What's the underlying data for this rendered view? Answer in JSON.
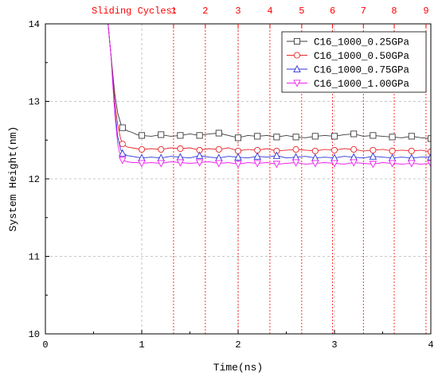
{
  "chart_data": {
    "type": "line",
    "xlabel": "Time(ns)",
    "ylabel": "System Height(nm)",
    "xlim": [
      0,
      4
    ],
    "ylim": [
      10,
      14
    ],
    "x_ticks": [
      "0",
      "1",
      "2",
      "3",
      "4"
    ],
    "y_ticks": [
      "10",
      "11",
      "12",
      "13",
      "14"
    ],
    "grid": true,
    "legend_position": "top-right",
    "top_axis": {
      "label": "Sliding Cycles:",
      "color": "#ff0000",
      "cycles": [
        {
          "label": "1",
          "time": 1.33
        },
        {
          "label": "2",
          "time": 1.66
        },
        {
          "label": "3",
          "time": 2.0
        },
        {
          "label": "4",
          "time": 2.33
        },
        {
          "label": "5",
          "time": 2.66
        },
        {
          "label": "6",
          "time": 2.98
        },
        {
          "label": "7",
          "time": 3.3
        },
        {
          "label": "8",
          "time": 3.62
        },
        {
          "label": "9",
          "time": 3.95
        }
      ]
    },
    "series": [
      {
        "name": "C16_1000_0.25GPa",
        "color": "#3a3a3a",
        "marker": "square",
        "x": [
          0.6,
          0.62,
          0.65,
          0.68,
          0.7,
          0.72,
          0.75,
          0.78,
          0.8,
          0.85,
          0.9,
          0.95,
          1.0,
          1.1,
          1.2,
          1.3,
          1.4,
          1.5,
          1.6,
          1.7,
          1.8,
          1.9,
          2.0,
          2.1,
          2.2,
          2.3,
          2.4,
          2.5,
          2.6,
          2.7,
          2.8,
          2.9,
          3.0,
          3.1,
          3.2,
          3.3,
          3.4,
          3.5,
          3.6,
          3.7,
          3.8,
          3.9,
          4.0
        ],
        "y": [
          14.6,
          14.3,
          14.0,
          13.6,
          13.35,
          13.1,
          12.85,
          12.72,
          12.66,
          12.62,
          12.6,
          12.57,
          12.56,
          12.55,
          12.57,
          12.55,
          12.56,
          12.58,
          12.56,
          12.58,
          12.59,
          12.56,
          12.53,
          12.56,
          12.55,
          12.56,
          12.54,
          12.56,
          12.54,
          12.53,
          12.55,
          12.56,
          12.55,
          12.57,
          12.58,
          12.55,
          12.56,
          12.55,
          12.54,
          12.53,
          12.55,
          12.53,
          12.52
        ],
        "marker_x": [
          0.8,
          1.0,
          1.2,
          1.4,
          1.6,
          1.8,
          2.0,
          2.2,
          2.4,
          2.6,
          2.8,
          3.0,
          3.2,
          3.4,
          3.6,
          3.8,
          4.0
        ]
      },
      {
        "name": "C16_1000_0.50GPa",
        "color": "#e8262a",
        "marker": "circle",
        "x": [
          0.6,
          0.62,
          0.65,
          0.68,
          0.7,
          0.72,
          0.75,
          0.78,
          0.8,
          0.85,
          0.9,
          0.95,
          1.0,
          1.1,
          1.2,
          1.3,
          1.4,
          1.5,
          1.6,
          1.7,
          1.8,
          1.9,
          2.0,
          2.1,
          2.2,
          2.3,
          2.4,
          2.5,
          2.6,
          2.7,
          2.8,
          2.9,
          3.0,
          3.1,
          3.2,
          3.3,
          3.4,
          3.5,
          3.6,
          3.7,
          3.8,
          3.9,
          4.0
        ],
        "y": [
          14.6,
          14.3,
          14.0,
          13.6,
          13.3,
          13.0,
          12.7,
          12.52,
          12.45,
          12.41,
          12.4,
          12.39,
          12.38,
          12.39,
          12.38,
          12.4,
          12.39,
          12.4,
          12.37,
          12.39,
          12.38,
          12.4,
          12.36,
          12.38,
          12.37,
          12.39,
          12.36,
          12.37,
          12.38,
          12.37,
          12.36,
          12.38,
          12.37,
          12.39,
          12.38,
          12.36,
          12.37,
          12.38,
          12.36,
          12.37,
          12.36,
          12.37,
          12.35
        ],
        "marker_x": [
          0.8,
          1.0,
          1.2,
          1.4,
          1.6,
          1.8,
          2.0,
          2.2,
          2.4,
          2.6,
          2.8,
          3.0,
          3.2,
          3.4,
          3.6,
          3.8,
          4.0
        ]
      },
      {
        "name": "C16_1000_0.75GPa",
        "color": "#2c33d6",
        "marker": "triangle",
        "x": [
          0.6,
          0.62,
          0.65,
          0.68,
          0.7,
          0.72,
          0.75,
          0.78,
          0.8,
          0.85,
          0.9,
          0.95,
          1.0,
          1.1,
          1.2,
          1.3,
          1.4,
          1.5,
          1.6,
          1.7,
          1.8,
          1.9,
          2.0,
          2.1,
          2.2,
          2.3,
          2.4,
          2.5,
          2.6,
          2.7,
          2.8,
          2.9,
          3.0,
          3.1,
          3.2,
          3.3,
          3.4,
          3.5,
          3.6,
          3.7,
          3.8,
          3.9,
          4.0
        ],
        "y": [
          14.6,
          14.3,
          14.0,
          13.6,
          13.25,
          12.9,
          12.55,
          12.38,
          12.33,
          12.3,
          12.29,
          12.28,
          12.27,
          12.28,
          12.27,
          12.29,
          12.28,
          12.27,
          12.3,
          12.28,
          12.27,
          12.29,
          12.28,
          12.27,
          12.29,
          12.28,
          12.3,
          12.27,
          12.28,
          12.29,
          12.27,
          12.28,
          12.27,
          12.29,
          12.28,
          12.27,
          12.29,
          12.28,
          12.27,
          12.28,
          12.27,
          12.28,
          12.28
        ],
        "marker_x": [
          0.8,
          1.0,
          1.2,
          1.4,
          1.6,
          1.8,
          2.0,
          2.2,
          2.4,
          2.6,
          2.8,
          3.0,
          3.2,
          3.4,
          3.6,
          3.8,
          4.0
        ]
      },
      {
        "name": "C16_1000_1.00GPa",
        "color": "#ee22ee",
        "marker": "triangle-down",
        "x": [
          0.6,
          0.62,
          0.65,
          0.68,
          0.7,
          0.72,
          0.75,
          0.78,
          0.8,
          0.85,
          0.9,
          0.95,
          1.0,
          1.1,
          1.2,
          1.3,
          1.4,
          1.5,
          1.6,
          1.7,
          1.8,
          1.9,
          2.0,
          2.1,
          2.2,
          2.3,
          2.4,
          2.5,
          2.6,
          2.7,
          2.8,
          2.9,
          3.0,
          3.1,
          3.2,
          3.3,
          3.4,
          3.5,
          3.6,
          3.7,
          3.8,
          3.9,
          4.0
        ],
        "y": [
          14.6,
          14.3,
          14.0,
          13.6,
          13.2,
          12.85,
          12.45,
          12.27,
          12.24,
          12.22,
          12.21,
          12.21,
          12.2,
          12.21,
          12.2,
          12.22,
          12.21,
          12.2,
          12.21,
          12.22,
          12.2,
          12.21,
          12.19,
          12.21,
          12.2,
          12.21,
          12.19,
          12.2,
          12.21,
          12.19,
          12.2,
          12.21,
          12.2,
          12.19,
          12.21,
          12.2,
          12.19,
          12.21,
          12.2,
          12.19,
          12.2,
          12.19,
          12.2
        ],
        "marker_x": [
          0.8,
          1.0,
          1.2,
          1.4,
          1.6,
          1.8,
          2.0,
          2.2,
          2.4,
          2.6,
          2.8,
          3.0,
          3.2,
          3.4,
          3.6,
          3.8,
          4.0
        ]
      }
    ]
  }
}
